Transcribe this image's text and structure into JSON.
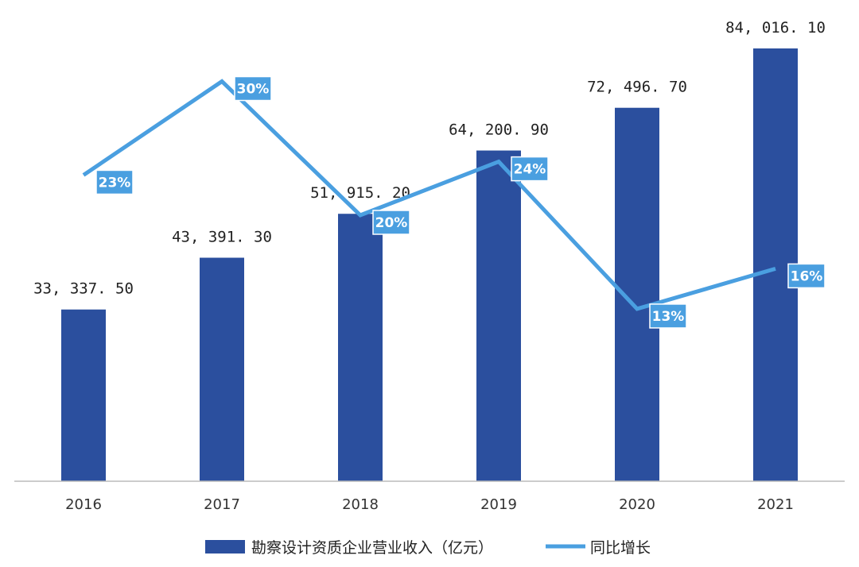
{
  "chart_data": {
    "type": "bar",
    "categories": [
      "2016",
      "2017",
      "2018",
      "2019",
      "2020",
      "2021"
    ],
    "series": [
      {
        "name": "勘察设计资质企业营业收入（亿元）",
        "type": "bar",
        "color": "#2B4F9E",
        "values": [
          33337.5,
          43391.3,
          51915.2,
          64200.9,
          72496.7,
          84016.1
        ],
        "labels": [
          "33, 337. 50",
          "43, 391. 30",
          "51, 915. 20",
          "64, 200. 90",
          "72, 496. 70",
          "84, 016. 10"
        ]
      },
      {
        "name": "同比增长",
        "type": "line",
        "color": "#4A9FE0",
        "values": [
          23,
          30,
          20,
          24,
          13,
          16
        ],
        "labels": [
          "23%",
          "30%",
          "20%",
          "24%",
          "13%",
          "16%"
        ]
      }
    ],
    "ylim": [
      0,
      84016.1
    ],
    "y2lim": [
      0,
      35
    ],
    "grid": false,
    "legend": "bottom",
    "axis_color": "#BBBBBB"
  }
}
